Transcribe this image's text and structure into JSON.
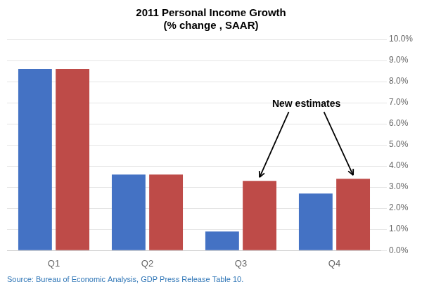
{
  "chart_data": {
    "type": "bar",
    "title": "2011 Personal Income Growth",
    "subtitle": "(% change , SAAR)",
    "categories": [
      "Q1",
      "Q2",
      "Q3",
      "Q4"
    ],
    "series": [
      {
        "color": "#4472C4",
        "values": [
          8.6,
          3.6,
          0.9,
          2.7
        ]
      },
      {
        "color": "#BE4B48",
        "values": [
          8.6,
          3.6,
          3.3,
          3.4
        ]
      }
    ],
    "ylim": [
      0,
      10
    ],
    "yticks": [
      {
        "value": 0,
        "label": "0.0%"
      },
      {
        "value": 1,
        "label": "1.0%"
      },
      {
        "value": 2,
        "label": "2.0%"
      },
      {
        "value": 3,
        "label": "3.0%"
      },
      {
        "value": 4,
        "label": "4.0%"
      },
      {
        "value": 5,
        "label": "5.0%"
      },
      {
        "value": 6,
        "label": "6.0%"
      },
      {
        "value": 7,
        "label": "7.0%"
      },
      {
        "value": 8,
        "label": "8.0%"
      },
      {
        "value": 9,
        "label": "9.0%"
      },
      {
        "value": 10,
        "label": "10.0%"
      }
    ],
    "grid": true,
    "annotation": "New estimates",
    "source": "Source: Bureau of Economic Analysis, GDP Press Release Table 10."
  }
}
